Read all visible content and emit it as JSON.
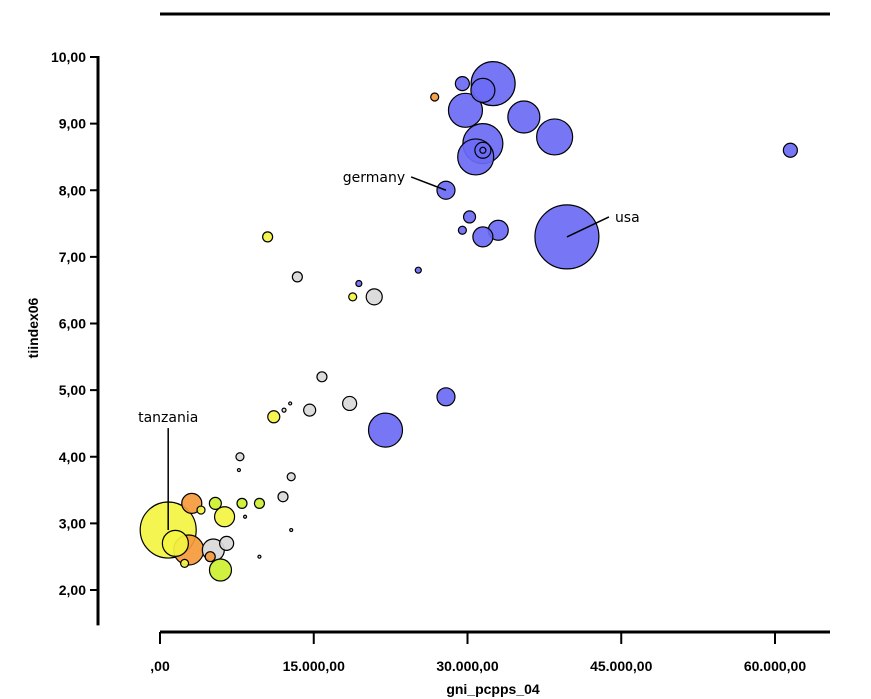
{
  "chart_data": {
    "type": "scatter",
    "title": "",
    "xlabel": "gni_pcpps_04",
    "ylabel": "tiindex06",
    "xlim": [
      0,
      65000
    ],
    "ylim": [
      1.5,
      10.5
    ],
    "x_ticks": [
      0,
      15000,
      30000,
      45000,
      60000
    ],
    "x_tick_labels": [
      ",00",
      "15.000,00",
      "30.000,00",
      "45.000,00",
      "60.000,00"
    ],
    "y_ticks": [
      2,
      3,
      4,
      5,
      6,
      7,
      8,
      9,
      10
    ],
    "y_tick_labels": [
      "2,00",
      "3,00",
      "4,00",
      "5,00",
      "6,00",
      "7,00",
      "8,00",
      "9,00",
      "10,00"
    ],
    "grid": false,
    "colors": {
      "blue": "#6b6bf5",
      "gray": "#d9d9d9",
      "yellow": "#f4f442",
      "lime": "#cdf030",
      "orange": "#f59a3c",
      "outline": "#000000"
    },
    "points": [
      {
        "x": 32500,
        "y": 9.6,
        "r": 22,
        "color": "blue"
      },
      {
        "x": 29500,
        "y": 9.6,
        "r": 7,
        "color": "blue"
      },
      {
        "x": 31500,
        "y": 9.5,
        "r": 12,
        "color": "blue"
      },
      {
        "x": 26800,
        "y": 9.4,
        "r": 4,
        "color": "orange"
      },
      {
        "x": 29800,
        "y": 9.2,
        "r": 17,
        "color": "blue"
      },
      {
        "x": 35500,
        "y": 9.1,
        "r": 16,
        "color": "blue"
      },
      {
        "x": 38500,
        "y": 8.8,
        "r": 18,
        "color": "blue"
      },
      {
        "x": 31500,
        "y": 8.7,
        "r": 20,
        "color": "blue"
      },
      {
        "x": 31500,
        "y": 8.6,
        "r": 8,
        "color": "blue"
      },
      {
        "x": 31500,
        "y": 8.6,
        "r": 3,
        "color": "blue"
      },
      {
        "x": 30800,
        "y": 8.5,
        "r": 18,
        "color": "blue"
      },
      {
        "x": 61500,
        "y": 8.6,
        "r": 7,
        "color": "blue"
      },
      {
        "x": 27900,
        "y": 8.0,
        "r": 9,
        "color": "blue"
      },
      {
        "x": 39700,
        "y": 7.3,
        "r": 32,
        "color": "blue"
      },
      {
        "x": 30200,
        "y": 7.6,
        "r": 6,
        "color": "blue"
      },
      {
        "x": 29500,
        "y": 7.4,
        "r": 4,
        "color": "blue"
      },
      {
        "x": 33000,
        "y": 7.4,
        "r": 10,
        "color": "blue"
      },
      {
        "x": 31500,
        "y": 7.3,
        "r": 10,
        "color": "blue"
      },
      {
        "x": 10500,
        "y": 7.3,
        "r": 5,
        "color": "yellow"
      },
      {
        "x": 25200,
        "y": 6.8,
        "r": 3,
        "color": "blue"
      },
      {
        "x": 13400,
        "y": 6.7,
        "r": 5,
        "color": "gray"
      },
      {
        "x": 19400,
        "y": 6.6,
        "r": 3,
        "color": "blue"
      },
      {
        "x": 18800,
        "y": 6.4,
        "r": 4,
        "color": "yellow"
      },
      {
        "x": 20900,
        "y": 6.4,
        "r": 8,
        "color": "gray"
      },
      {
        "x": 15800,
        "y": 5.2,
        "r": 5,
        "color": "gray"
      },
      {
        "x": 27900,
        "y": 4.9,
        "r": 9,
        "color": "blue"
      },
      {
        "x": 18500,
        "y": 4.8,
        "r": 7,
        "color": "gray"
      },
      {
        "x": 12700,
        "y": 4.8,
        "r": 1.5,
        "color": "gray"
      },
      {
        "x": 12100,
        "y": 4.7,
        "r": 2,
        "color": "gray"
      },
      {
        "x": 14600,
        "y": 4.7,
        "r": 6,
        "color": "gray"
      },
      {
        "x": 11100,
        "y": 4.6,
        "r": 6,
        "color": "yellow"
      },
      {
        "x": 22000,
        "y": 4.4,
        "r": 17,
        "color": "blue"
      },
      {
        "x": 7800,
        "y": 4.0,
        "r": 4,
        "color": "gray"
      },
      {
        "x": 7700,
        "y": 3.8,
        "r": 1.5,
        "color": "gray"
      },
      {
        "x": 12800,
        "y": 3.7,
        "r": 4,
        "color": "gray"
      },
      {
        "x": 12000,
        "y": 3.4,
        "r": 5,
        "color": "gray"
      },
      {
        "x": 3100,
        "y": 3.3,
        "r": 10,
        "color": "orange"
      },
      {
        "x": 5400,
        "y": 3.3,
        "r": 6,
        "color": "lime"
      },
      {
        "x": 8000,
        "y": 3.3,
        "r": 5,
        "color": "lime"
      },
      {
        "x": 9700,
        "y": 3.3,
        "r": 5,
        "color": "lime"
      },
      {
        "x": 4000,
        "y": 3.2,
        "r": 4,
        "color": "yellow"
      },
      {
        "x": 6300,
        "y": 3.1,
        "r": 10,
        "color": "yellow"
      },
      {
        "x": 8300,
        "y": 3.1,
        "r": 1.5,
        "color": "gray"
      },
      {
        "x": 800,
        "y": 2.9,
        "r": 28,
        "color": "yellow"
      },
      {
        "x": 12800,
        "y": 2.9,
        "r": 1.5,
        "color": "gray"
      },
      {
        "x": 1500,
        "y": 2.7,
        "r": 13,
        "color": "yellow"
      },
      {
        "x": 2800,
        "y": 2.6,
        "r": 15,
        "color": "orange"
      },
      {
        "x": 5200,
        "y": 2.6,
        "r": 11,
        "color": "gray"
      },
      {
        "x": 6500,
        "y": 2.7,
        "r": 7,
        "color": "gray"
      },
      {
        "x": 4900,
        "y": 2.5,
        "r": 5,
        "color": "orange"
      },
      {
        "x": 2400,
        "y": 2.4,
        "r": 4,
        "color": "yellow"
      },
      {
        "x": 9700,
        "y": 2.5,
        "r": 1.5,
        "color": "gray"
      },
      {
        "x": 5900,
        "y": 2.3,
        "r": 11,
        "color": "lime"
      }
    ],
    "annotations": [
      {
        "label": "germany",
        "x": 27900,
        "y": 8.0,
        "lx": 24500,
        "ly": 8.2,
        "anchor": "end"
      },
      {
        "label": "usa",
        "x": 39700,
        "y": 7.3,
        "lx": 43800,
        "ly": 7.6,
        "anchor": "start"
      },
      {
        "label": "tanzania",
        "x": 800,
        "y": 2.9,
        "lx": 800,
        "ly": 4.55,
        "anchor": "middle"
      }
    ]
  }
}
